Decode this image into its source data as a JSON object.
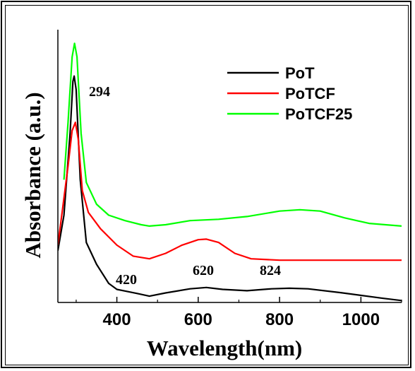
{
  "chart_data": {
    "type": "line",
    "title": "",
    "xlabel": "Wavelength(nm)",
    "ylabel": "Absorbance (a.u.)",
    "xlim": [
      255,
      1100
    ],
    "ylim": [
      0,
      1
    ],
    "x_ticks": [
      400,
      600,
      800,
      1000
    ],
    "x_tick_labels": [
      "400",
      "600",
      "800",
      "1000"
    ],
    "y_ticks_shown": false,
    "grid": false,
    "legend_position": "top-right",
    "series": [
      {
        "name": "PoT",
        "color": "#000000",
        "points": [
          [
            255,
            0.19
          ],
          [
            270,
            0.32
          ],
          [
            285,
            0.62
          ],
          [
            292,
            0.81
          ],
          [
            295,
            0.83
          ],
          [
            300,
            0.78
          ],
          [
            310,
            0.45
          ],
          [
            325,
            0.22
          ],
          [
            350,
            0.14
          ],
          [
            380,
            0.07
          ],
          [
            400,
            0.048
          ],
          [
            420,
            0.042
          ],
          [
            450,
            0.033
          ],
          [
            480,
            0.023
          ],
          [
            520,
            0.035
          ],
          [
            580,
            0.05
          ],
          [
            620,
            0.055
          ],
          [
            660,
            0.048
          ],
          [
            720,
            0.043
          ],
          [
            780,
            0.05
          ],
          [
            824,
            0.052
          ],
          [
            870,
            0.05
          ],
          [
            950,
            0.036
          ],
          [
            1050,
            0.016
          ],
          [
            1100,
            0.007
          ]
        ]
      },
      {
        "name": "PoTCF",
        "color": "#ff0000",
        "points": [
          [
            255,
            0.21
          ],
          [
            268,
            0.36
          ],
          [
            280,
            0.5
          ],
          [
            290,
            0.63
          ],
          [
            298,
            0.66
          ],
          [
            305,
            0.6
          ],
          [
            315,
            0.41
          ],
          [
            330,
            0.33
          ],
          [
            360,
            0.27
          ],
          [
            400,
            0.21
          ],
          [
            440,
            0.17
          ],
          [
            480,
            0.16
          ],
          [
            520,
            0.18
          ],
          [
            560,
            0.21
          ],
          [
            600,
            0.23
          ],
          [
            620,
            0.232
          ],
          [
            650,
            0.22
          ],
          [
            690,
            0.18
          ],
          [
            730,
            0.16
          ],
          [
            800,
            0.155
          ],
          [
            900,
            0.155
          ],
          [
            1000,
            0.155
          ],
          [
            1100,
            0.155
          ]
        ]
      },
      {
        "name": "PoTCF25",
        "color": "#00ff00",
        "points": [
          [
            270,
            0.45
          ],
          [
            280,
            0.66
          ],
          [
            290,
            0.9
          ],
          [
            296,
            0.95
          ],
          [
            302,
            0.9
          ],
          [
            312,
            0.62
          ],
          [
            325,
            0.44
          ],
          [
            350,
            0.36
          ],
          [
            380,
            0.32
          ],
          [
            420,
            0.3
          ],
          [
            460,
            0.285
          ],
          [
            480,
            0.28
          ],
          [
            520,
            0.285
          ],
          [
            580,
            0.3
          ],
          [
            650,
            0.305
          ],
          [
            720,
            0.315
          ],
          [
            800,
            0.335
          ],
          [
            850,
            0.34
          ],
          [
            900,
            0.335
          ],
          [
            960,
            0.31
          ],
          [
            1020,
            0.29
          ],
          [
            1100,
            0.28
          ]
        ]
      }
    ],
    "annotations": [
      {
        "text": "294",
        "x": 294,
        "y": 0.8
      },
      {
        "text": "420",
        "x": 420,
        "y": 0.075
      },
      {
        "text": "620",
        "x": 620,
        "y": 0.1
      },
      {
        "text": "824",
        "x": 824,
        "y": 0.1
      }
    ]
  }
}
